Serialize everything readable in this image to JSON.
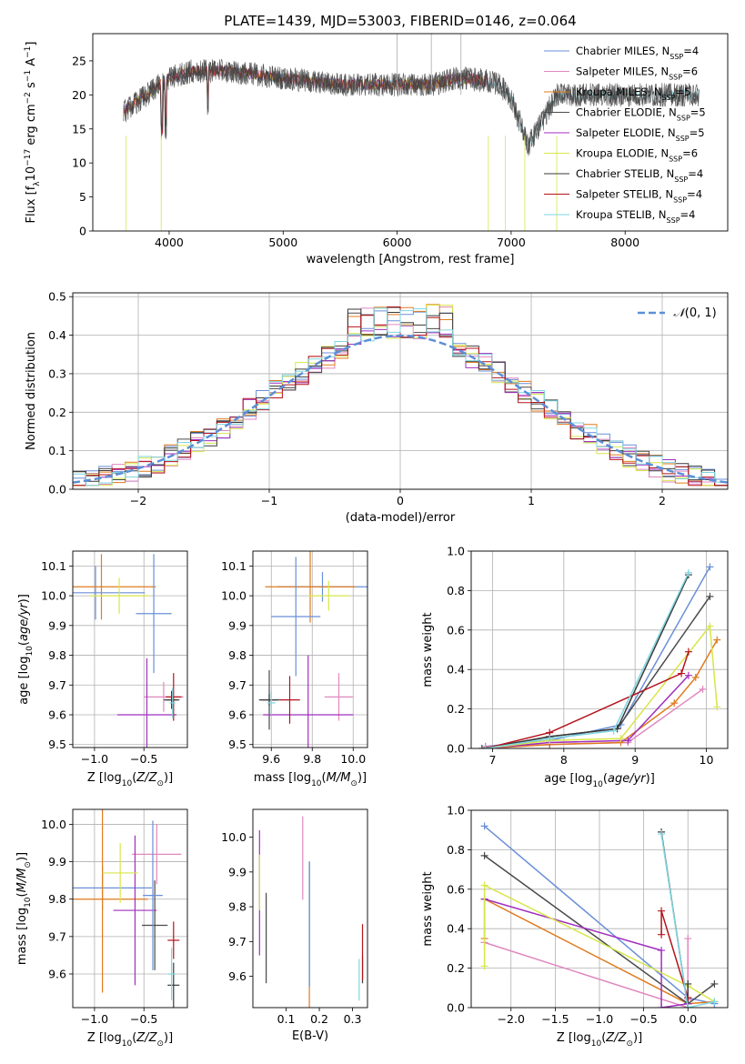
{
  "figure_title": "PLATE=1439, MJD=53003, FIBERID=0146, z=0.064",
  "series_colors": [
    "#6a8fd8",
    "#e088bf",
    "#e07b1f",
    "#4a4a4a",
    "#a12fbf",
    "#d7e64a",
    "#3a3a3a",
    "#b5131b",
    "#7fd6e0"
  ],
  "chart_data": [
    {
      "id": "spectrum",
      "type": "line",
      "xlabel": "wavelength [Angstrom, rest frame]",
      "ylabel": "Flux [f_λ 10^-17 erg cm^-2 s^-1 A^-1]",
      "xlim": [
        3330,
        8900
      ],
      "ylim": [
        0,
        29
      ],
      "xticks": [
        4000,
        5000,
        6000,
        7000,
        8000
      ],
      "yticks": [
        0,
        5,
        10,
        15,
        20,
        25
      ],
      "grid": false,
      "legend_position": "top-right",
      "legend": [
        {
          "pre": "Chabrier MILES, N",
          "sub": "SSP",
          "post": "=4"
        },
        {
          "pre": "Salpeter MILES, N",
          "sub": "SSP",
          "post": "=6"
        },
        {
          "pre": "Kroupa MILES, N",
          "sub": "SSP",
          "post": "=5"
        },
        {
          "pre": "Chabrier ELODIE, N",
          "sub": "SSP",
          "post": "=5"
        },
        {
          "pre": "Salpeter ELODIE, N",
          "sub": "SSP",
          "post": "=5"
        },
        {
          "pre": "Kroupa ELODIE, N",
          "sub": "SSP",
          "post": "=6"
        },
        {
          "pre": "Chabrier STELIB, N",
          "sub": "SSP",
          "post": "=4"
        },
        {
          "pre": "Salpeter STELIB, N",
          "sub": "SSP",
          "post": "=4"
        },
        {
          "pre": "Kroupa STELIB, N",
          "sub": "SSP",
          "post": "=4"
        }
      ],
      "continuum": {
        "x": [
          3600,
          3800,
          4000,
          4200,
          4500,
          5000,
          5500,
          6000,
          6300,
          6550,
          6800,
          6900,
          7000,
          7150,
          7300,
          7400
        ],
        "y": [
          17.5,
          20,
          22.5,
          23.5,
          23.5,
          22.5,
          21.5,
          21.5,
          21.5,
          22.5,
          22,
          21.5,
          19.5,
          12.5,
          17,
          20
        ]
      }
    },
    {
      "id": "residuals",
      "type": "histogram",
      "xlabel": "(data-model)/error",
      "ylabel": "Normed distribution",
      "xlim": [
        -2.5,
        2.5
      ],
      "ylim": [
        0,
        0.51
      ],
      "xticks": [
        -2,
        -1,
        0,
        1,
        2
      ],
      "yticks": [
        0.0,
        0.1,
        0.2,
        0.3,
        0.4,
        0.5
      ],
      "grid": true,
      "legend_position": "top-right",
      "legend_label": "N(0,1)",
      "bin_width": 0.1,
      "peak_values": [
        0.42,
        0.43,
        0.45,
        0.47,
        0.44,
        0.39,
        0.42,
        0.48
      ]
    },
    {
      "id": "age_vs_Z",
      "type": "errorbar",
      "xlabel": "Z [log10(Z/Z⊙)]",
      "ylabel": "age [log10(age/yr)]",
      "xlim": [
        -1.22,
        -0.06
      ],
      "ylim": [
        9.49,
        10.15
      ],
      "xticks": [
        -1.0,
        -0.5
      ],
      "yticks": [
        9.5,
        9.6,
        9.7,
        9.8,
        9.9,
        10.0,
        10.1
      ],
      "grid": true,
      "points": [
        {
          "x": -0.99,
          "y": 10.01,
          "xerr": 0.5,
          "yerr": 0.09
        },
        {
          "x": -0.3,
          "y": 9.66,
          "xerr": 0.2,
          "yerr": 0.05
        },
        {
          "x": -0.93,
          "y": 10.03,
          "xerr": 0.55,
          "yerr": 0.11
        },
        {
          "x": -0.22,
          "y": 9.65,
          "xerr": 0.08,
          "yerr": 0.03
        },
        {
          "x": -0.47,
          "y": 9.6,
          "xerr": 0.3,
          "yerr": 0.19
        },
        {
          "x": -0.75,
          "y": 10.0,
          "xerr": 0.3,
          "yerr": 0.06
        },
        {
          "x": -0.22,
          "y": 9.65,
          "xerr": 0.06,
          "yerr": 0.03
        },
        {
          "x": -0.2,
          "y": 9.66,
          "xerr": 0.08,
          "yerr": 0.08
        },
        {
          "x": -0.21,
          "y": 9.64,
          "xerr": 0.03,
          "yerr": 0.05
        },
        {
          "x": -0.4,
          "y": 9.94,
          "xerr": 0.18,
          "yerr": 0.2
        }
      ]
    },
    {
      "id": "age_vs_mass",
      "type": "errorbar",
      "xlabel": "mass [log10(M/M⊙)]",
      "ylabel": "",
      "xlim": [
        9.51,
        10.07
      ],
      "ylim": [
        9.49,
        10.15
      ],
      "xticks": [
        9.6,
        9.8,
        10.0
      ],
      "yticks": [
        9.5,
        9.6,
        9.7,
        9.8,
        9.9,
        10.0,
        10.1
      ],
      "grid": true,
      "points": [
        {
          "x": 9.85,
          "y": 10.03,
          "xerr": 0.22,
          "yerr": 0.05
        },
        {
          "x": 9.93,
          "y": 9.66,
          "xerr": 0.07,
          "yerr": 0.08
        },
        {
          "x": 9.79,
          "y": 10.03,
          "xerr": 0.22,
          "yerr": 0.12
        },
        {
          "x": 9.59,
          "y": 9.65,
          "xerr": 0.04,
          "yerr": 0.1
        },
        {
          "x": 9.78,
          "y": 9.6,
          "xerr": 0.22,
          "yerr": 0.2
        },
        {
          "x": 9.88,
          "y": 10.0,
          "xerr": 0.1,
          "yerr": 0.05
        },
        {
          "x": 9.59,
          "y": 9.65,
          "xerr": 0.05,
          "yerr": 0.02
        },
        {
          "x": 9.69,
          "y": 9.65,
          "xerr": 0.05,
          "yerr": 0.08
        },
        {
          "x": 9.6,
          "y": 9.64,
          "xerr": 0.02,
          "yerr": 0.04
        },
        {
          "x": 9.72,
          "y": 9.93,
          "xerr": 0.12,
          "yerr": 0.2
        }
      ]
    },
    {
      "id": "weight_vs_age",
      "type": "line",
      "xlabel": "age [log10(age/yr)]",
      "ylabel": "mass weight",
      "xlim": [
        6.7,
        10.3
      ],
      "ylim": [
        0,
        1
      ],
      "xticks": [
        7,
        8,
        9,
        10
      ],
      "yticks": [
        0.0,
        0.2,
        0.4,
        0.6,
        0.8,
        1.0
      ],
      "grid": true,
      "series": [
        {
          "x": [
            6.9,
            7.8,
            8.8,
            10.05
          ],
          "y": [
            0.01,
            0.04,
            0.12,
            0.92
          ]
        },
        {
          "x": [
            6.9,
            7.8,
            8.9,
            9.95
          ],
          "y": [
            0.01,
            0.02,
            0.03,
            0.3
          ]
        },
        {
          "x": [
            6.9,
            7.8,
            8.8,
            9.55,
            9.85,
            10.15
          ],
          "y": [
            0.0,
            0.02,
            0.03,
            0.23,
            0.36,
            0.55
          ]
        },
        {
          "x": [
            6.85,
            7.8,
            8.75,
            10.05
          ],
          "y": [
            0.0,
            0.06,
            0.1,
            0.77
          ]
        },
        {
          "x": [
            6.9,
            7.8,
            8.9,
            9.75
          ],
          "y": [
            0.0,
            0.03,
            0.04,
            0.37
          ]
        },
        {
          "x": [
            6.9,
            7.8,
            8.8,
            10.05,
            10.15
          ],
          "y": [
            0.0,
            0.04,
            0.05,
            0.62,
            0.21
          ]
        },
        {
          "x": [
            6.9,
            7.8,
            8.75,
            9.75
          ],
          "y": [
            0.0,
            0.06,
            0.1,
            0.88
          ]
        },
        {
          "x": [
            6.9,
            7.8,
            9.65,
            9.75
          ],
          "y": [
            0.0,
            0.08,
            0.38,
            0.49
          ]
        },
        {
          "x": [
            6.9,
            7.8,
            8.7,
            9.75
          ],
          "y": [
            0.0,
            0.05,
            0.09,
            0.89
          ]
        }
      ]
    },
    {
      "id": "mass_vs_Z",
      "type": "errorbar",
      "xlabel": "Z [log10(Z/Z⊙)]",
      "ylabel": "mass [log10(M/M⊙)]",
      "xlim": [
        -1.22,
        -0.06
      ],
      "ylim": [
        9.51,
        10.04
      ],
      "xticks": [
        -1.0,
        -0.5
      ],
      "yticks": [
        9.6,
        9.7,
        9.8,
        9.9,
        10.0
      ],
      "grid": true,
      "points": [
        {
          "x": -0.92,
          "y": 9.83,
          "xerr": 0.5,
          "yerr": 0.06
        },
        {
          "x": -0.37,
          "y": 9.92,
          "xerr": 0.25,
          "yerr": 0.08
        },
        {
          "x": -0.92,
          "y": 9.8,
          "xerr": 0.46,
          "yerr": 0.25
        },
        {
          "x": -0.39,
          "y": 9.73,
          "xerr": 0.13,
          "yerr": 0.12
        },
        {
          "x": -0.59,
          "y": 9.77,
          "xerr": 0.22,
          "yerr": 0.2
        },
        {
          "x": -0.74,
          "y": 9.87,
          "xerr": 0.18,
          "yerr": 0.08
        },
        {
          "x": -0.2,
          "y": 9.57,
          "xerr": 0.06,
          "yerr": 0.06
        },
        {
          "x": -0.2,
          "y": 9.69,
          "xerr": 0.06,
          "yerr": 0.05
        },
        {
          "x": -0.22,
          "y": 9.6,
          "xerr": 0.04,
          "yerr": 0.07
        },
        {
          "x": -0.41,
          "y": 9.81,
          "xerr": 0.1,
          "yerr": 0.2
        }
      ]
    },
    {
      "id": "mass_vs_EBV",
      "type": "errorbar",
      "xlabel": "E(B-V)",
      "ylabel": "",
      "xlim": [
        0.0,
        0.345
      ],
      "ylim": [
        9.51,
        10.08
      ],
      "xticks": [
        0.1,
        0.2,
        0.3
      ],
      "yticks": [
        9.6,
        9.7,
        9.8,
        9.9,
        10.0
      ],
      "grid": false,
      "points": [
        {
          "x": 0.17,
          "y": 9.75,
          "yerr": 0.18
        },
        {
          "x": 0.15,
          "y": 9.94,
          "yerr": 0.12
        },
        {
          "x": 0.17,
          "y": 9.72,
          "yerr": 0.21
        },
        {
          "x": 0.04,
          "y": 9.71,
          "yerr": 0.13
        },
        {
          "x": 0.02,
          "y": 9.84,
          "yerr": 0.18
        },
        {
          "x": 0.02,
          "y": 9.87,
          "yerr": 0.08
        },
        {
          "x": 0.33,
          "y": 9.62,
          "yerr": 0.04
        },
        {
          "x": 0.33,
          "y": 9.67,
          "yerr": 0.08
        },
        {
          "x": 0.32,
          "y": 9.59,
          "yerr": 0.06
        },
        {
          "x": 0.17,
          "y": 9.75,
          "yerr": 0.18
        }
      ]
    },
    {
      "id": "weight_vs_Z",
      "type": "line",
      "xlabel": "Z [log10(Z/Z⊙)]",
      "ylabel": "mass weight",
      "xlim": [
        -2.45,
        0.45
      ],
      "ylim": [
        0,
        1
      ],
      "xticks": [
        -2.0,
        -1.5,
        -1.0,
        -0.5,
        0.0
      ],
      "yticks": [
        0.0,
        0.2,
        0.4,
        0.6,
        0.8,
        1.0
      ],
      "grid": true,
      "series": [
        {
          "x": [
            -2.3,
            0.0,
            0.3
          ],
          "y": [
            0.92,
            0.05,
            0.02
          ]
        },
        {
          "x": [
            -2.3,
            0.0,
            0.0,
            0.0
          ],
          "y": [
            0.33,
            0.0,
            0.35,
            0.04
          ]
        },
        {
          "x": [
            -2.3,
            -2.3,
            0.0,
            0.3
          ],
          "y": [
            0.35,
            0.55,
            0.02,
            0.03
          ]
        },
        {
          "x": [
            -2.3,
            0.0,
            0.3
          ],
          "y": [
            0.77,
            0.02,
            0.12
          ]
        },
        {
          "x": [
            -2.3,
            -0.3,
            -0.3,
            0.0
          ],
          "y": [
            0.55,
            0.29,
            0.0,
            0.02
          ]
        },
        {
          "x": [
            -2.3,
            -2.3,
            0.0,
            0.3
          ],
          "y": [
            0.21,
            0.62,
            0.11,
            0.03
          ]
        },
        {
          "x": [
            -0.3,
            0.0,
            0.0
          ],
          "y": [
            0.89,
            0.0,
            0.12
          ]
        },
        {
          "x": [
            -0.3,
            -0.3,
            0.0
          ],
          "y": [
            0.37,
            0.49,
            0.05
          ]
        },
        {
          "x": [
            -0.3,
            0.0,
            0.3
          ],
          "y": [
            0.88,
            0.0,
            0.03
          ]
        }
      ]
    }
  ]
}
